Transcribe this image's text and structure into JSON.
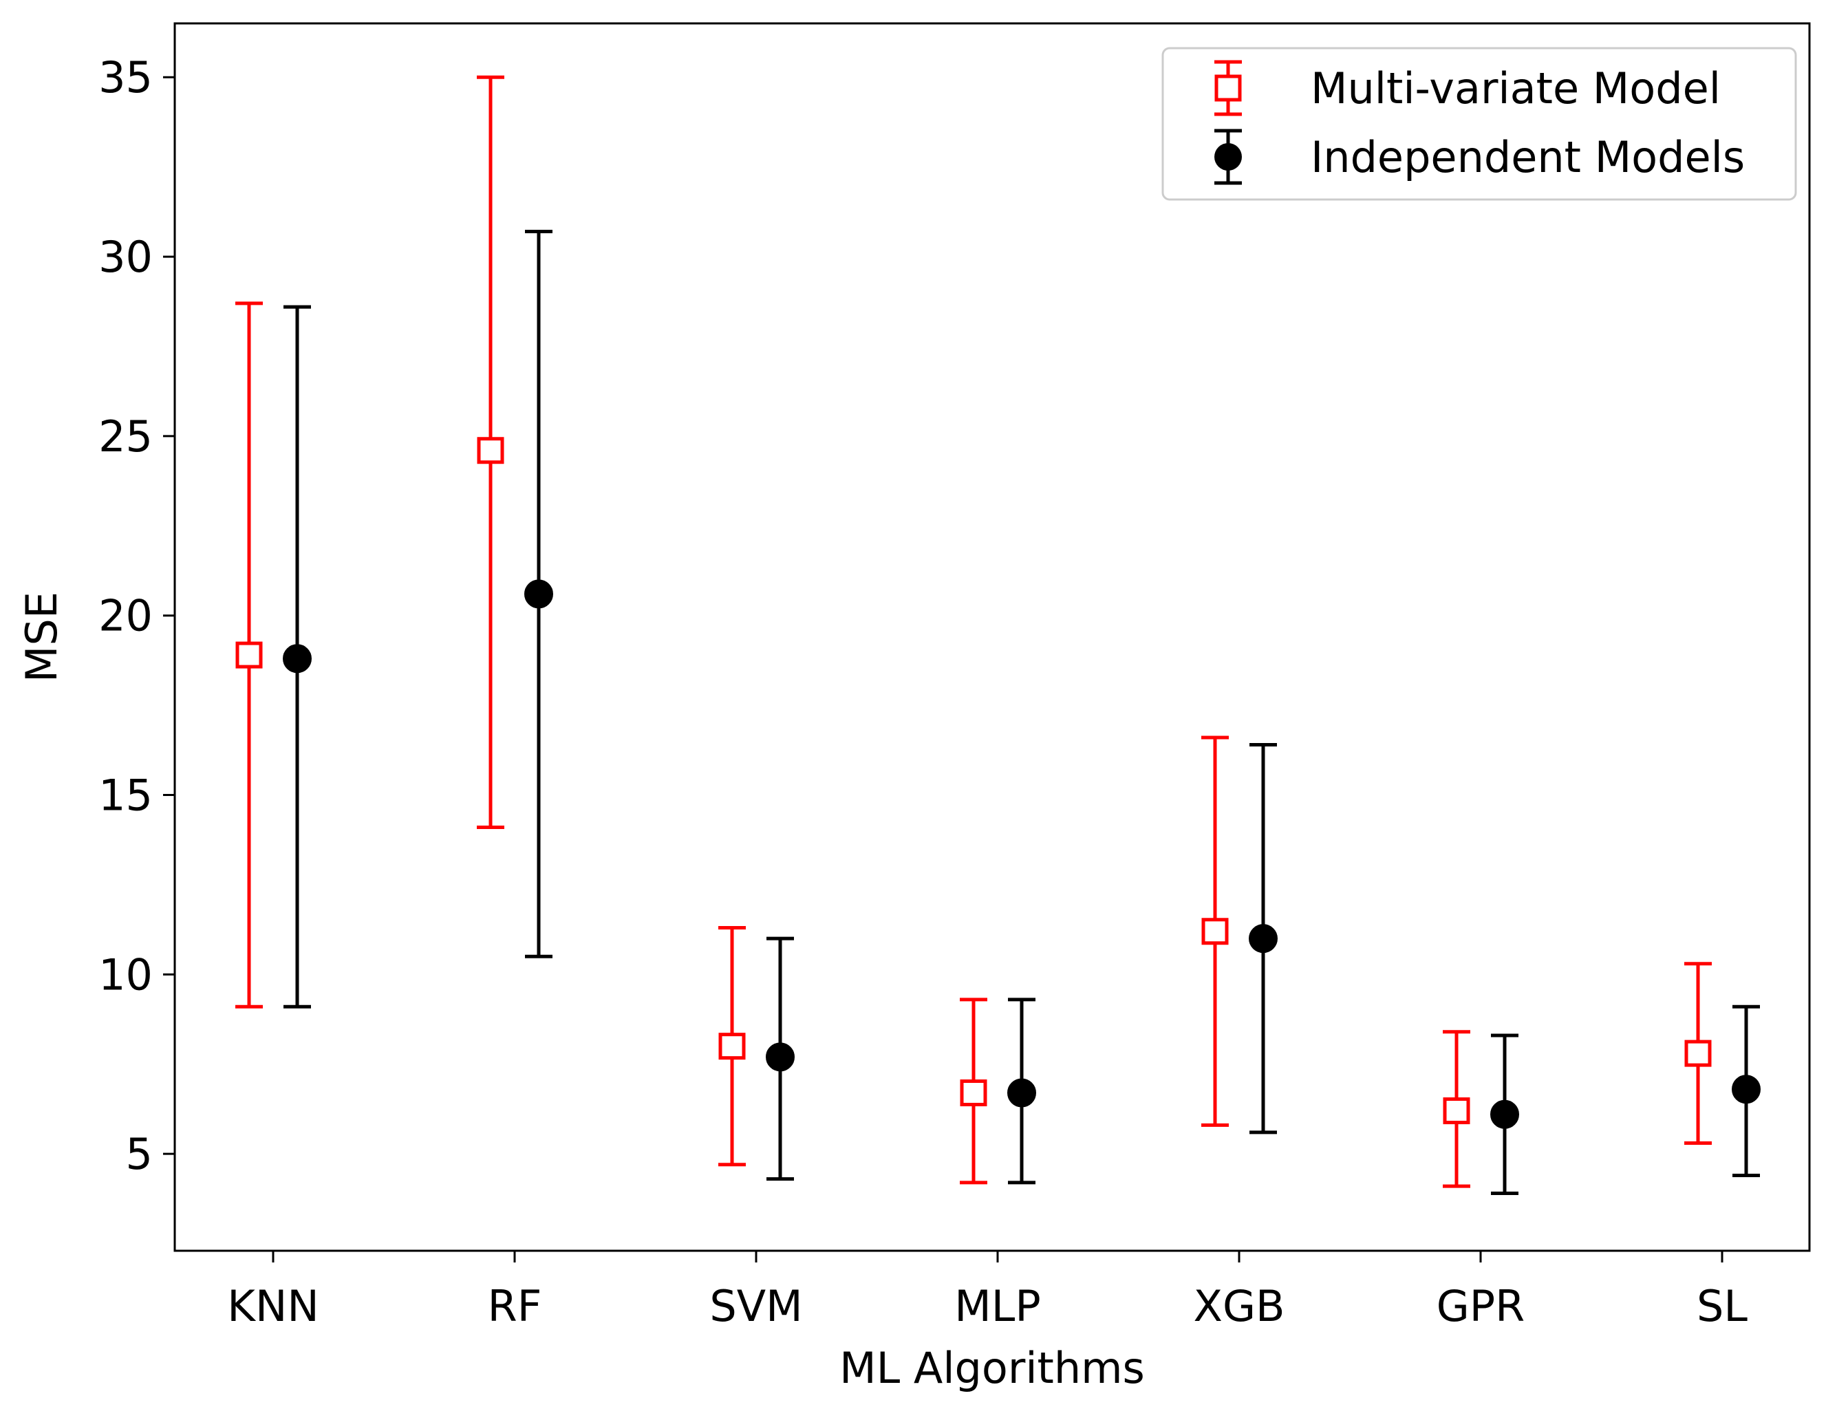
{
  "chart_data": {
    "type": "errorbar",
    "title": "",
    "xlabel": "ML Algorithms",
    "ylabel": "MSE",
    "categories": [
      "KNN",
      "RF",
      "SVM",
      "MLP",
      "XGB",
      "GPR",
      "SL"
    ],
    "ylim": [
      2.3,
      36.5
    ],
    "yticks": [
      5,
      10,
      15,
      20,
      25,
      30,
      35
    ],
    "ytick_labels": [
      "5",
      "10",
      "15",
      "20",
      "25",
      "30",
      "35"
    ],
    "grid": false,
    "legend_position": "top-right",
    "series": [
      {
        "name": "Multi-variate Model",
        "color": "#ff0000",
        "marker": "open-square",
        "values": [
          18.9,
          24.6,
          8.0,
          6.7,
          11.2,
          6.2,
          7.8
        ],
        "lower": [
          9.1,
          14.1,
          4.7,
          4.2,
          5.8,
          4.1,
          5.3
        ],
        "upper": [
          28.7,
          35.0,
          11.3,
          9.3,
          16.6,
          8.4,
          10.3
        ]
      },
      {
        "name": "Independent Models",
        "color": "#000000",
        "marker": "filled-circle",
        "values": [
          18.8,
          20.6,
          7.7,
          6.7,
          11.0,
          6.1,
          6.8
        ],
        "lower": [
          9.1,
          10.5,
          4.3,
          4.2,
          5.6,
          3.9,
          4.4
        ],
        "upper": [
          28.6,
          30.7,
          11.0,
          9.3,
          16.4,
          8.3,
          9.1
        ]
      }
    ]
  }
}
